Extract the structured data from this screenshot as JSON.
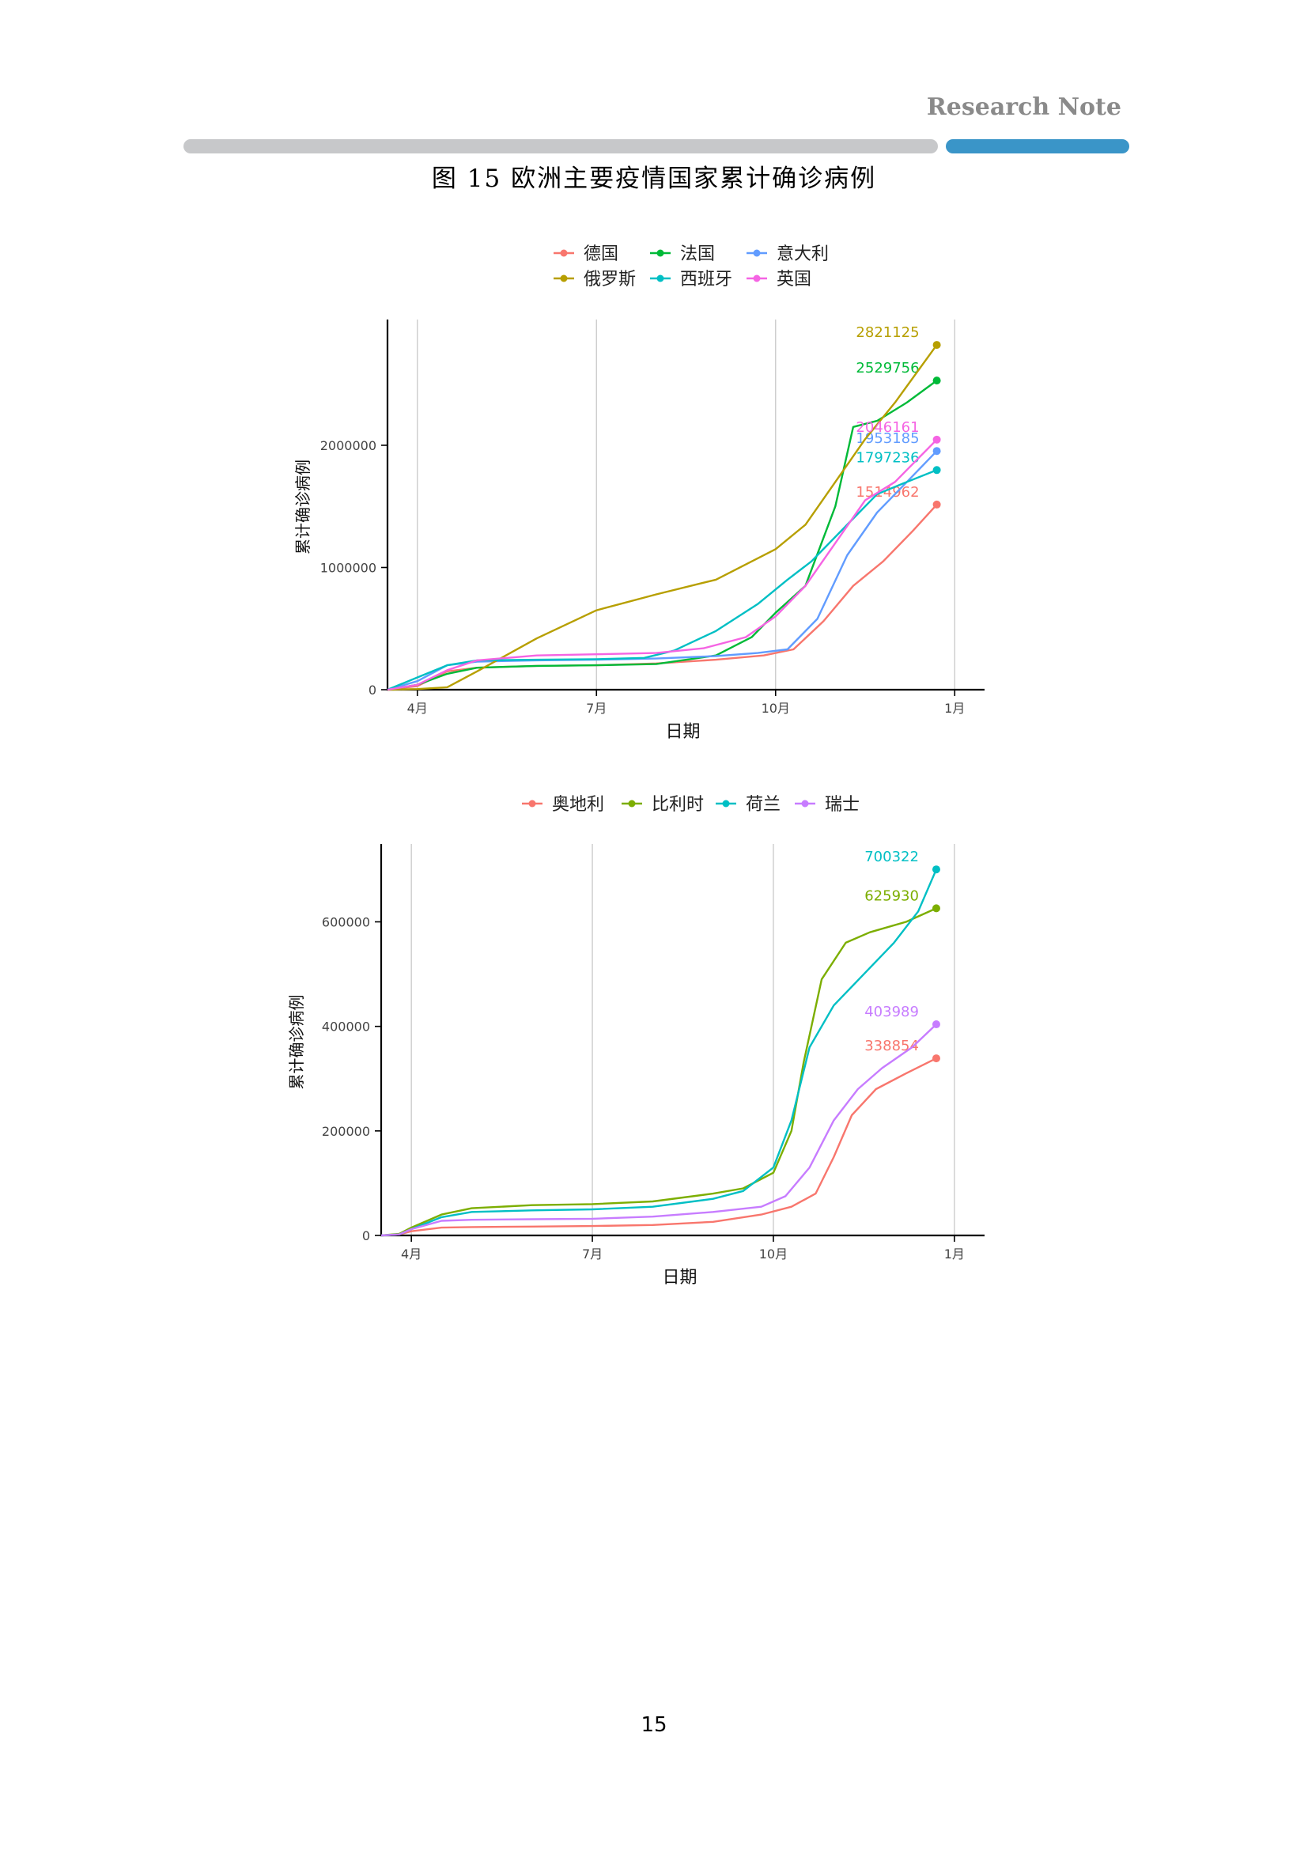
{
  "header": {
    "note": "Research Note"
  },
  "figure": {
    "title": "图 15 欧洲主要疫情国家累计确诊病例"
  },
  "page_number": "15",
  "chart_data": [
    {
      "type": "line",
      "xlabel": "日期",
      "ylabel": "累计确诊病例",
      "xticks": [
        "4月",
        "7月",
        "10月",
        "1月"
      ],
      "xtick_values": [
        3.0,
        6.0,
        9.0,
        12.0
      ],
      "xlim": [
        2.5,
        12.5
      ],
      "ylim": [
        0,
        2990000
      ],
      "yticks": [
        0,
        1000000,
        2000000
      ],
      "ytick_labels": [
        "0",
        "1000000",
        "2000000"
      ],
      "grid": "vertical",
      "legend_position": "top",
      "series": [
        {
          "name": "德国",
          "color": "#f8766d",
          "end_label": "1514962",
          "x": [
            2.5,
            3.0,
            3.5,
            4.0,
            5.0,
            6.0,
            7.0,
            8.0,
            8.8,
            9.3,
            9.8,
            10.3,
            10.8,
            11.3,
            11.7
          ],
          "y": [
            0,
            30000,
            150000,
            180000,
            195000,
            200000,
            215000,
            245000,
            280000,
            330000,
            560000,
            850000,
            1050000,
            1300000,
            1514962
          ]
        },
        {
          "name": "法国",
          "color": "#00ba38",
          "end_label": "2529756",
          "x": [
            2.5,
            3.0,
            3.5,
            4.0,
            5.0,
            6.0,
            7.0,
            8.0,
            8.6,
            9.0,
            9.5,
            10.0,
            10.3,
            10.7,
            11.2,
            11.7
          ],
          "y": [
            0,
            40000,
            130000,
            180000,
            195000,
            200000,
            210000,
            280000,
            430000,
            630000,
            850000,
            1500000,
            2150000,
            2200000,
            2350000,
            2529756
          ]
        },
        {
          "name": "意大利",
          "color": "#619cff",
          "end_label": "1953185",
          "x": [
            2.5,
            3.0,
            3.5,
            4.0,
            5.0,
            6.0,
            7.0,
            8.0,
            8.7,
            9.2,
            9.7,
            10.2,
            10.7,
            11.2,
            11.7
          ],
          "y": [
            0,
            70000,
            200000,
            230000,
            240000,
            245000,
            255000,
            275000,
            300000,
            330000,
            580000,
            1100000,
            1450000,
            1700000,
            1953185
          ]
        },
        {
          "name": "俄罗斯",
          "color": "#b79f00",
          "end_label": "2821125",
          "x": [
            2.5,
            3.0,
            3.5,
            4.0,
            5.0,
            6.0,
            7.0,
            8.0,
            9.0,
            9.5,
            10.0,
            10.5,
            11.0,
            11.7
          ],
          "y": [
            0,
            5000,
            20000,
            150000,
            420000,
            650000,
            780000,
            900000,
            1150000,
            1350000,
            1700000,
            2050000,
            2350000,
            2821125
          ]
        },
        {
          "name": "西班牙",
          "color": "#00bfc4",
          "end_label": "1797236",
          "x": [
            2.5,
            3.0,
            3.5,
            4.0,
            5.0,
            6.0,
            6.8,
            7.3,
            8.0,
            8.7,
            9.2,
            9.6,
            10.2,
            10.7,
            11.2,
            11.7
          ],
          "y": [
            0,
            100000,
            200000,
            240000,
            245000,
            250000,
            260000,
            320000,
            480000,
            700000,
            900000,
            1050000,
            1350000,
            1600000,
            1700000,
            1797236
          ]
        },
        {
          "name": "英国",
          "color": "#f564e3",
          "end_label": "2046161",
          "x": [
            2.5,
            3.0,
            3.5,
            4.0,
            5.0,
            6.0,
            7.0,
            7.8,
            8.5,
            9.0,
            9.5,
            10.0,
            10.5,
            11.0,
            11.7
          ],
          "y": [
            0,
            40000,
            160000,
            240000,
            280000,
            290000,
            300000,
            340000,
            430000,
            600000,
            850000,
            1200000,
            1550000,
            1700000,
            2046161
          ]
        }
      ]
    },
    {
      "type": "line",
      "xlabel": "日期",
      "ylabel": "累计确诊病例",
      "xticks": [
        "4月",
        "7月",
        "10月",
        "1月"
      ],
      "xtick_values": [
        3.0,
        6.0,
        9.0,
        12.0
      ],
      "xlim": [
        2.5,
        12.5
      ],
      "ylim": [
        0,
        740000
      ],
      "yticks": [
        0,
        200000,
        400000,
        600000
      ],
      "ytick_labels": [
        "0",
        "200000",
        "400000",
        "600000"
      ],
      "grid": "vertical",
      "legend_position": "top",
      "series": [
        {
          "name": "奥地利",
          "color": "#f8766d",
          "end_label": "338854",
          "x": [
            2.5,
            2.8,
            3.0,
            3.5,
            4.0,
            5.0,
            6.0,
            7.0,
            8.0,
            8.8,
            9.3,
            9.7,
            10.0,
            10.3,
            10.7,
            11.2,
            11.7
          ],
          "y": [
            0,
            2000,
            8000,
            15000,
            16000,
            17000,
            18000,
            20000,
            26000,
            40000,
            55000,
            80000,
            150000,
            230000,
            280000,
            310000,
            338854
          ]
        },
        {
          "name": "比利时",
          "color": "#7cae00",
          "end_label": "625930",
          "x": [
            2.5,
            2.8,
            3.0,
            3.5,
            4.0,
            5.0,
            6.0,
            7.0,
            8.0,
            8.5,
            9.0,
            9.3,
            9.5,
            9.8,
            10.2,
            10.6,
            11.2,
            11.7
          ],
          "y": [
            0,
            3000,
            15000,
            40000,
            52000,
            58000,
            60000,
            65000,
            80000,
            90000,
            120000,
            200000,
            330000,
            490000,
            560000,
            580000,
            600000,
            625930
          ]
        },
        {
          "name": "荷兰",
          "color": "#00bfc4",
          "end_label": "700322",
          "x": [
            2.5,
            2.8,
            3.0,
            3.5,
            4.0,
            5.0,
            6.0,
            7.0,
            8.0,
            8.5,
            9.0,
            9.3,
            9.6,
            10.0,
            10.5,
            11.0,
            11.4,
            11.7
          ],
          "y": [
            0,
            2000,
            12000,
            35000,
            45000,
            48000,
            50000,
            55000,
            70000,
            85000,
            130000,
            220000,
            360000,
            440000,
            500000,
            560000,
            620000,
            700322
          ]
        },
        {
          "name": "瑞士",
          "color": "#c77cff",
          "end_label": "403989",
          "x": [
            2.5,
            2.8,
            3.0,
            3.5,
            4.0,
            5.0,
            6.0,
            7.0,
            8.0,
            8.8,
            9.2,
            9.6,
            10.0,
            10.4,
            10.8,
            11.3,
            11.7
          ],
          "y": [
            0,
            2000,
            12000,
            28000,
            30000,
            31000,
            32000,
            36000,
            45000,
            55000,
            75000,
            130000,
            220000,
            280000,
            320000,
            360000,
            403989
          ]
        }
      ]
    }
  ]
}
